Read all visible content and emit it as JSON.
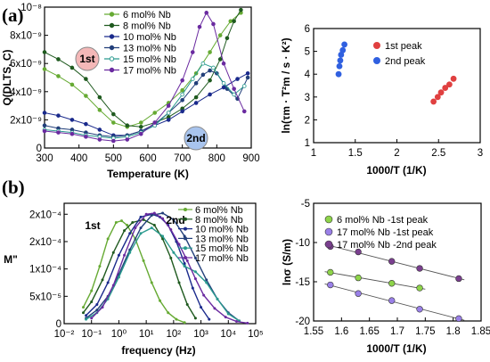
{
  "panels": [
    {
      "label": "(a)"
    },
    {
      "label": "(b)"
    }
  ],
  "colors": {
    "6 mol% Nb": "#66aa33",
    "8 mol% Nb": "#1f5a1f",
    "10 mol% Nb": "#1a2a8c",
    "13 mol% Nb": "#223f7a",
    "15 mol% Nb": "#2a9a8f",
    "17 mol% Nb": "#6a2aa0",
    "peak1_red": "#e04040",
    "peak2_blue": "#3060e0",
    "b_green": "#8ed44a",
    "b_lavender": "#9a80e8",
    "b_purple": "#7a3f8f"
  },
  "chart_data": [
    {
      "id": "a_left",
      "type": "scatter",
      "title": "",
      "xlabel": "Temperature (K)",
      "ylabel": "Q(DLTS, C)",
      "xlim": [
        300,
        900
      ],
      "ylim": [
        0,
        1e-08
      ],
      "yticks": [
        "0",
        "2x10⁻⁹",
        "4x10⁻⁹",
        "6x10⁻⁹",
        "8x10⁻⁹",
        "10⁻⁸"
      ],
      "xticks": [
        "300",
        "400",
        "500",
        "600",
        "700",
        "800",
        "900"
      ],
      "annotations": [
        "1st",
        "2nd"
      ],
      "legend_position": "top-left",
      "series": [
        {
          "name": "6 mol% Nb",
          "x": [
            300,
            340,
            380,
            420,
            460,
            500,
            540,
            580,
            620,
            660,
            700,
            740,
            780,
            810,
            840,
            870
          ],
          "y": [
            5.6e-09,
            5.1e-09,
            4.5e-09,
            3.7e-09,
            2.7e-09,
            1.8e-09,
            1.5e-09,
            1.8e-09,
            2.5e-09,
            3.2e-09,
            4.1e-09,
            5.3e-09,
            6.8e-09,
            8e-09,
            9e-09,
            9.6e-09
          ]
        },
        {
          "name": "8 mol% Nb",
          "x": [
            300,
            340,
            380,
            420,
            460,
            500,
            540,
            580,
            620,
            660,
            700,
            740,
            780,
            810,
            830,
            850,
            870
          ],
          "y": [
            6.8e-09,
            6.3e-09,
            5.7e-09,
            4.9e-09,
            3.6e-09,
            2.4e-09,
            1.6e-09,
            1.5e-09,
            1.8e-09,
            2.2e-09,
            2.8e-09,
            3.6e-09,
            4.8e-09,
            6.3e-09,
            7.8e-09,
            9e-09,
            9.8e-09
          ]
        },
        {
          "name": "10 mol% Nb",
          "x": [
            300,
            340,
            380,
            420,
            460,
            500,
            540,
            580,
            620,
            660,
            700,
            740,
            780,
            820,
            860,
            890
          ],
          "y": [
            2.5e-09,
            2.3e-09,
            2e-09,
            1.7e-09,
            1.3e-09,
            9e-10,
            9e-10,
            1.2e-09,
            1.6e-09,
            2e-09,
            2.6e-09,
            3.2e-09,
            3.8e-09,
            4.3e-09,
            4.9e-09,
            5.3e-09
          ]
        },
        {
          "name": "13 mol% Nb",
          "x": [
            300,
            340,
            380,
            420,
            460,
            500,
            540,
            580,
            620,
            660,
            700,
            740,
            760,
            780,
            800,
            830,
            860,
            890
          ],
          "y": [
            1.6e-09,
            1.4e-09,
            1.3e-09,
            1.1e-09,
            9e-10,
            8e-10,
            9e-10,
            1.2e-09,
            1.7e-09,
            2.5e-09,
            3.4e-09,
            4.6e-09,
            5.2e-09,
            5.5e-09,
            5.3e-09,
            4.2e-09,
            3.5e-09,
            5e-09
          ]
        },
        {
          "name": "15 mol% Nb",
          "x": [
            300,
            340,
            380,
            420,
            460,
            500,
            540,
            580,
            620,
            660,
            700,
            730,
            760,
            790,
            820,
            850,
            880
          ],
          "y": [
            1.3e-09,
            1.2e-09,
            1.1e-09,
            9e-10,
            8e-10,
            7e-10,
            8e-10,
            1.1e-09,
            1.6e-09,
            2.5e-09,
            3.8e-09,
            4.9e-09,
            6e-09,
            5.7e-09,
            4.6e-09,
            3.8e-09,
            4.4e-09
          ]
        },
        {
          "name": "17 mol% Nb",
          "x": [
            300,
            340,
            380,
            420,
            460,
            500,
            540,
            580,
            620,
            660,
            700,
            730,
            750,
            770,
            790,
            820,
            850,
            880
          ],
          "y": [
            1.2e-09,
            1.1e-09,
            1e-09,
            8e-10,
            6e-10,
            5e-10,
            6e-10,
            1e-09,
            1.8e-09,
            3e-09,
            4.8e-09,
            6.8e-09,
            8.6e-09,
            9.6e-09,
            8.8e-09,
            6e-09,
            4.2e-09,
            2.6e-09
          ]
        }
      ]
    },
    {
      "id": "a_right",
      "type": "scatter",
      "title": "",
      "xlabel": "1000/T (1/K)",
      "ylabel": "ln(τm · T²m / s · K²)",
      "xlim": [
        1,
        3
      ],
      "ylim": [
        1,
        6
      ],
      "xticks": [
        "1",
        "1.5",
        "2",
        "2.5",
        "3"
      ],
      "yticks": [
        "1",
        "2",
        "3",
        "4",
        "5",
        "6"
      ],
      "legend_position": "top-right",
      "series": [
        {
          "name": "1st peak",
          "color_key": "peak1_red",
          "x": [
            2.44,
            2.49,
            2.53,
            2.58,
            2.63,
            2.68
          ],
          "y": [
            2.8,
            3.0,
            3.2,
            3.4,
            3.55,
            3.8
          ]
        },
        {
          "name": "2nd peak",
          "color_key": "peak2_blue",
          "x": [
            1.3,
            1.31,
            1.32,
            1.33,
            1.35,
            1.37
          ],
          "y": [
            4.0,
            4.35,
            4.6,
            4.85,
            5.05,
            5.3
          ]
        }
      ]
    },
    {
      "id": "b_left",
      "type": "line",
      "title": "",
      "xlabel": "frequency (Hz)",
      "ylabel": "M\"",
      "xlim": [
        -2,
        5
      ],
      "ylim": [
        0,
        0.00022
      ],
      "xscale": "log",
      "xticks": [
        "10⁻²",
        "10⁻¹",
        "10⁰",
        "10¹",
        "10²",
        "10³",
        "10⁴",
        "10⁵"
      ],
      "yticks": [
        "0",
        "5x10⁻⁵",
        "1x10⁻⁴",
        "2x10⁻⁴",
        "2x10⁻⁴"
      ],
      "annotations": [
        "1st",
        "2nd"
      ],
      "legend_position": "top-right",
      "series": [
        {
          "name": "6 mol% Nb",
          "logx": [
            -1.3,
            -1.0,
            -0.7,
            -0.4,
            -0.1,
            0.1,
            0.3,
            0.6,
            0.9,
            1.2,
            1.5,
            1.8,
            2.1,
            2.4
          ],
          "y": [
            3e-05,
            6e-05,
            0.000105,
            0.000155,
            0.000185,
            0.000188,
            0.00018,
            0.000155,
            0.000115,
            7.5e-05,
            4.2e-05,
            2e-05,
            8e-06,
            2e-06
          ]
        },
        {
          "name": "8 mol% Nb",
          "logx": [
            -1.3,
            -1.0,
            -0.6,
            -0.2,
            0.2,
            0.5,
            0.9,
            1.3,
            1.6,
            1.9,
            2.2,
            2.5,
            2.8
          ],
          "y": [
            2e-05,
            4e-05,
            8e-05,
            0.00013,
            0.00017,
            0.000185,
            0.00019,
            0.00018,
            0.000155,
            0.00012,
            7.5e-05,
            3.5e-05,
            1e-05
          ]
        },
        {
          "name": "10 mol% Nb",
          "logx": [
            -1.2,
            -0.8,
            -0.4,
            0.0,
            0.4,
            0.8,
            1.2,
            1.5,
            1.8,
            2.1,
            2.4,
            2.7,
            3.0,
            3.3
          ],
          "y": [
            1.5e-05,
            3.5e-05,
            7.5e-05,
            0.000125,
            0.000165,
            0.000195,
            0.0002,
            0.000195,
            0.00018,
            0.00015,
            0.00011,
            6.5e-05,
            3e-05,
            8e-06
          ]
        },
        {
          "name": "13 mol% Nb",
          "logx": [
            -1.2,
            -0.8,
            -0.4,
            0.0,
            0.4,
            0.8,
            1.2,
            1.6,
            2.0,
            2.4,
            2.8,
            3.2,
            3.6,
            4.0,
            4.4
          ],
          "y": [
            1e-05,
            2.5e-05,
            5e-05,
            9e-05,
            0.000135,
            0.000175,
            0.000198,
            0.000202,
            0.00019,
            0.00016,
            0.00012,
            8e-05,
            4.5e-05,
            2e-05,
            5e-06
          ]
        },
        {
          "name": "15 mol% Nb",
          "logx": [
            -1.2,
            -0.8,
            -0.4,
            0.0,
            0.4,
            0.8,
            1.2,
            1.6,
            2.0,
            2.4,
            2.8,
            3.2,
            3.6,
            4.0,
            4.4
          ],
          "y": [
            8e-06,
            2e-05,
            4.5e-05,
            8.5e-05,
            0.00013,
            0.000165,
            0.000175,
            0.00016,
            0.00013,
            0.000105,
            9.5e-05,
            7.5e-05,
            4.5e-05,
            1.8e-05,
            5e-06
          ]
        },
        {
          "name": "17 mol% Nb",
          "logx": [
            -1.0,
            -0.6,
            -0.2,
            0.2,
            0.6,
            1.0,
            1.3,
            1.6,
            1.9,
            2.2,
            2.5,
            2.8,
            3.1,
            3.5,
            3.9,
            4.3,
            4.7
          ],
          "y": [
            1e-05,
            3e-05,
            7e-05,
            0.000125,
            0.000175,
            0.0002,
            0.000202,
            0.000192,
            0.000172,
            0.000145,
            0.000115,
            8.2e-05,
            5.2e-05,
            2.8e-05,
            1.2e-05,
            4e-06,
            1e-06
          ]
        }
      ]
    },
    {
      "id": "b_right",
      "type": "scatter",
      "title": "",
      "xlabel": "1000/T (1/K)",
      "ylabel": "lnσ (S/m)",
      "xlim": [
        1.55,
        1.85
      ],
      "ylim": [
        -20,
        -5
      ],
      "xticks": [
        "1.55",
        "1.6",
        "1.65",
        "1.7",
        "1.75",
        "1.8",
        "1.85"
      ],
      "yticks": [
        "-20",
        "-15",
        "-10",
        "-5"
      ],
      "legend_position": "top",
      "series": [
        {
          "name": "6 mol% Nb -1st peak",
          "color_key": "b_green",
          "x": [
            1.58,
            1.63,
            1.69,
            1.74
          ],
          "y": [
            -13.8,
            -14.5,
            -15.2,
            -15.8
          ]
        },
        {
          "name": "17 mol% Nb -1st peak",
          "color_key": "b_lavender",
          "x": [
            1.58,
            1.63,
            1.69,
            1.74,
            1.81
          ],
          "y": [
            -15.4,
            -16.5,
            -17.4,
            -18.5,
            -19.7
          ]
        },
        {
          "name": "17 mol% Nb -2nd peak",
          "color_key": "b_purple",
          "x": [
            1.58,
            1.63,
            1.69,
            1.74,
            1.81
          ],
          "y": [
            -10.5,
            -11.2,
            -12.4,
            -13.3,
            -14.6
          ]
        }
      ]
    }
  ]
}
